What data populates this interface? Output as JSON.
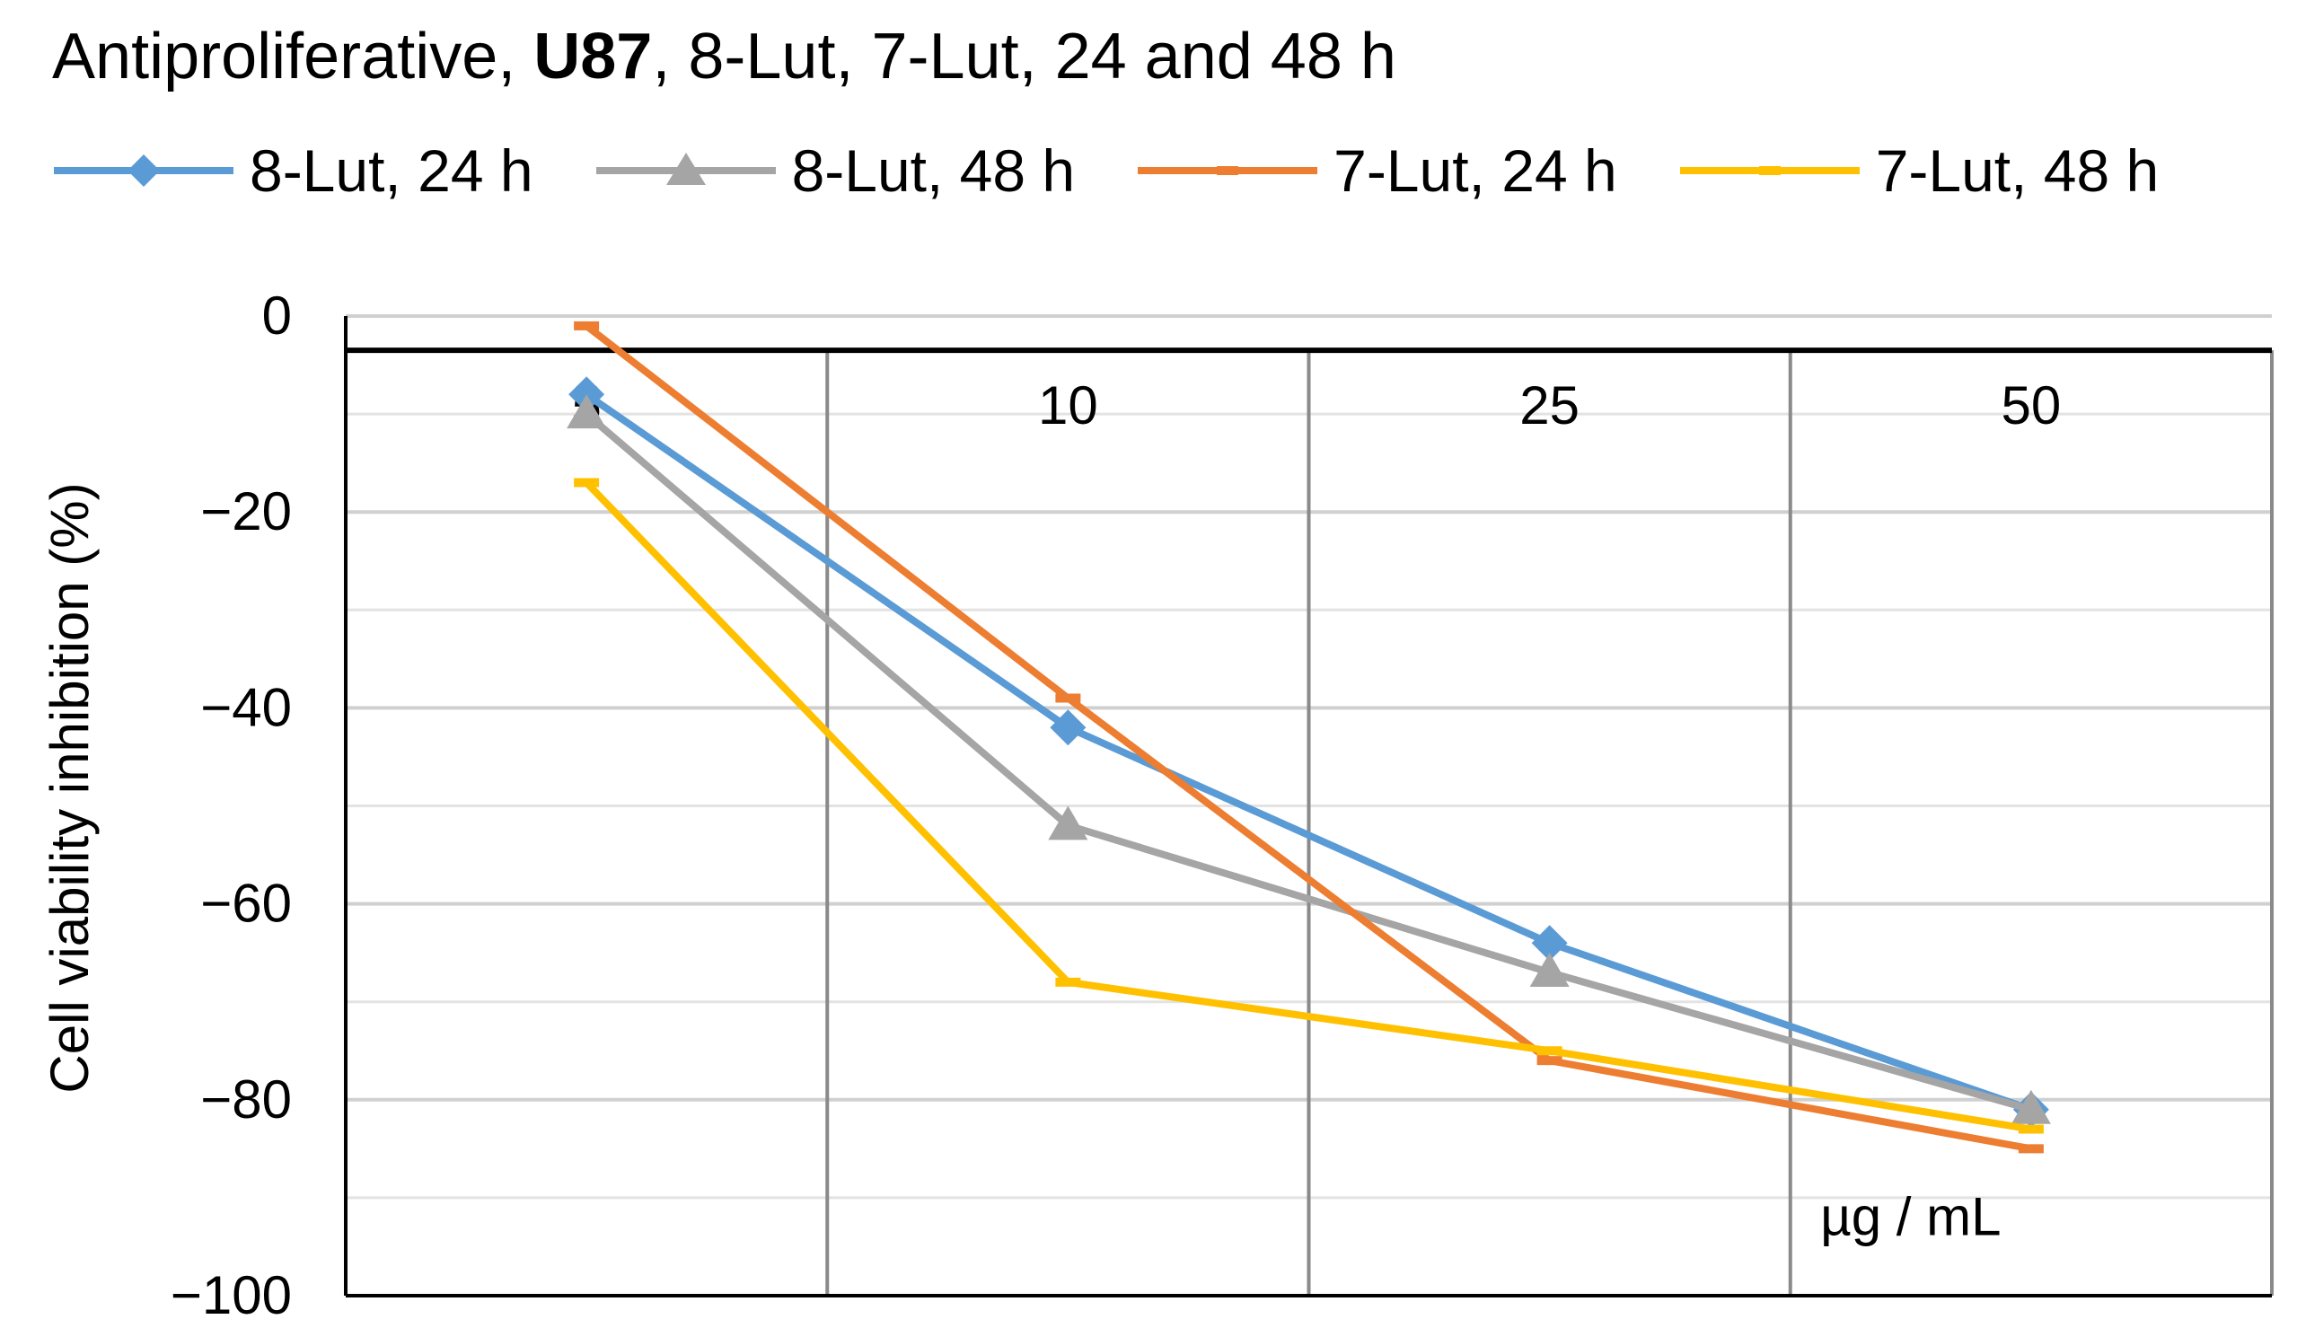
{
  "title": {
    "prefix": "Antiproliferative, ",
    "bold": "U87",
    "suffix": ", 8-Lut, 7-Lut, 24 and 48 h"
  },
  "chart_data": {
    "type": "line",
    "title": "Antiproliferative, U87, 8-Lut, 7-Lut, 24 and 48 h",
    "categories": [
      "5",
      "10",
      "25",
      "50"
    ],
    "xlabel": "µg / mL",
    "ylabel": "Cell viability inhibition (%)",
    "ylim": [
      -100,
      0
    ],
    "yticks": [
      0,
      -20,
      -40,
      -60,
      -80,
      -100
    ],
    "ytick_labels": [
      "0",
      "−20",
      "−40",
      "−60",
      "−80",
      "−100"
    ],
    "grid": true,
    "legend_position": "top",
    "series": [
      {
        "name": "8-Lut, 24 h",
        "color": "#5b9bd5",
        "marker": "diamond",
        "values": [
          -8,
          -42,
          -64,
          -81
        ]
      },
      {
        "name": "8-Lut, 48 h",
        "color": "#a5a5a5",
        "marker": "triangle",
        "values": [
          -10,
          -52,
          -67,
          -81
        ]
      },
      {
        "name": "7-Lut, 24 h",
        "color": "#ed7d31",
        "marker": "dash",
        "values": [
          -1,
          -39,
          -76,
          -85
        ]
      },
      {
        "name": "7-Lut, 48 h",
        "color": "#ffc000",
        "marker": "dash",
        "values": [
          -17,
          -68,
          -75,
          -83
        ]
      }
    ]
  }
}
